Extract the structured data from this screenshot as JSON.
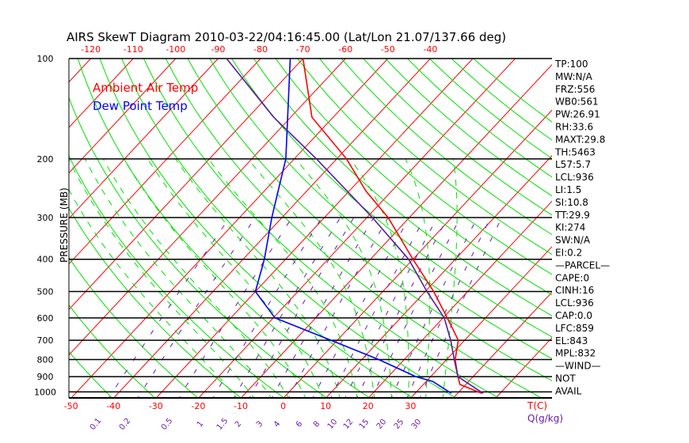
{
  "chart_data": {
    "type": "line",
    "title": "AIRS SkewT Diagram 2010-03-22/04:16:45.00 (Lat/Lon 21.07/137.66 deg)",
    "ylabel": "PRESSURE (MB)",
    "xlabel": "T(C)",
    "mixing_ratio_label": "Q(g/kg)",
    "y_scale": "log",
    "ylim": [
      1045,
      100
    ],
    "pressure_ticks": [
      100,
      200,
      300,
      400,
      500,
      600,
      700,
      800,
      900,
      1000
    ],
    "top_temp_ticks": [
      -120,
      -110,
      -100,
      -90,
      -80,
      -70,
      -60,
      -50,
      -40
    ],
    "bottom_temp_ticks": [
      -50,
      -40,
      -30,
      -20,
      -10,
      0,
      10,
      20,
      30
    ],
    "mixing_ratio_ticks": [
      "0.1",
      "0.2",
      "0.5",
      "1",
      "1.5",
      "2",
      "3",
      "4",
      "6",
      "8",
      "10",
      "12",
      "15",
      "20",
      "25",
      "30"
    ],
    "legend": [
      {
        "label": "Ambient Air Temp",
        "color": "#ff0000"
      },
      {
        "label": "Dew Point Temp",
        "color": "#0000ff"
      }
    ],
    "legend_placement": "top-left",
    "series": [
      {
        "name": "Ambient Air Temp",
        "color": "#ff0000",
        "pressure": [
          100,
          150,
          200,
          250,
          300,
          400,
          500,
          600,
          700,
          800,
          900,
          950,
          1010
        ],
        "temperature": [
          -70,
          -55,
          -37.7,
          -26,
          -15,
          0,
          12,
          21,
          28.5,
          32,
          36.4,
          38.6,
          45.7
        ]
      },
      {
        "name": "Dew Point Temp",
        "color": "#0000ff",
        "pressure": [
          100,
          200,
          300,
          400,
          500,
          600,
          700,
          800,
          900,
          930,
          1010
        ],
        "temperature": [
          -73,
          -52,
          -42.4,
          -35,
          -30,
          -19.6,
          -1.5,
          14,
          26.5,
          31.5,
          38.5
        ]
      },
      {
        "name": "Parcel",
        "color": "#5a1aa0",
        "pressure": [
          100,
          150,
          200,
          300,
          400,
          500,
          600,
          700,
          800,
          900,
          1010
        ],
        "temperature": [
          -88,
          -64,
          -44.8,
          -18.7,
          -1,
          10.4,
          20.3,
          26.7,
          31.8,
          36.4,
          46
        ]
      }
    ],
    "colors": {
      "isotherm": "#ff0000",
      "dry_adiabat": "#00e000",
      "moist_adiabat": "#00e000",
      "mixing_ratio": "#6a1ab0",
      "isobar": "#000000"
    }
  },
  "indices": [
    "TP:100",
    "MW:N/A",
    "FRZ:556",
    "WB0:561",
    "PW:26.91",
    "RH:33.6",
    "MAXT:29.8",
    "TH:5463",
    "L57:5.7",
    "LCL:936",
    "LI:1.5",
    "SI:10.8",
    "TT:29.9",
    "KI:274",
    "SW:N/A",
    "EI:0.2",
    "—PARCEL—",
    "CAPE:0",
    "CINH:16",
    "LCL:936",
    "CAP:0.0",
    "LFC:859",
    "EL:843",
    "MPL:832",
    "—WIND—",
    "NOT",
    "AVAIL"
  ]
}
